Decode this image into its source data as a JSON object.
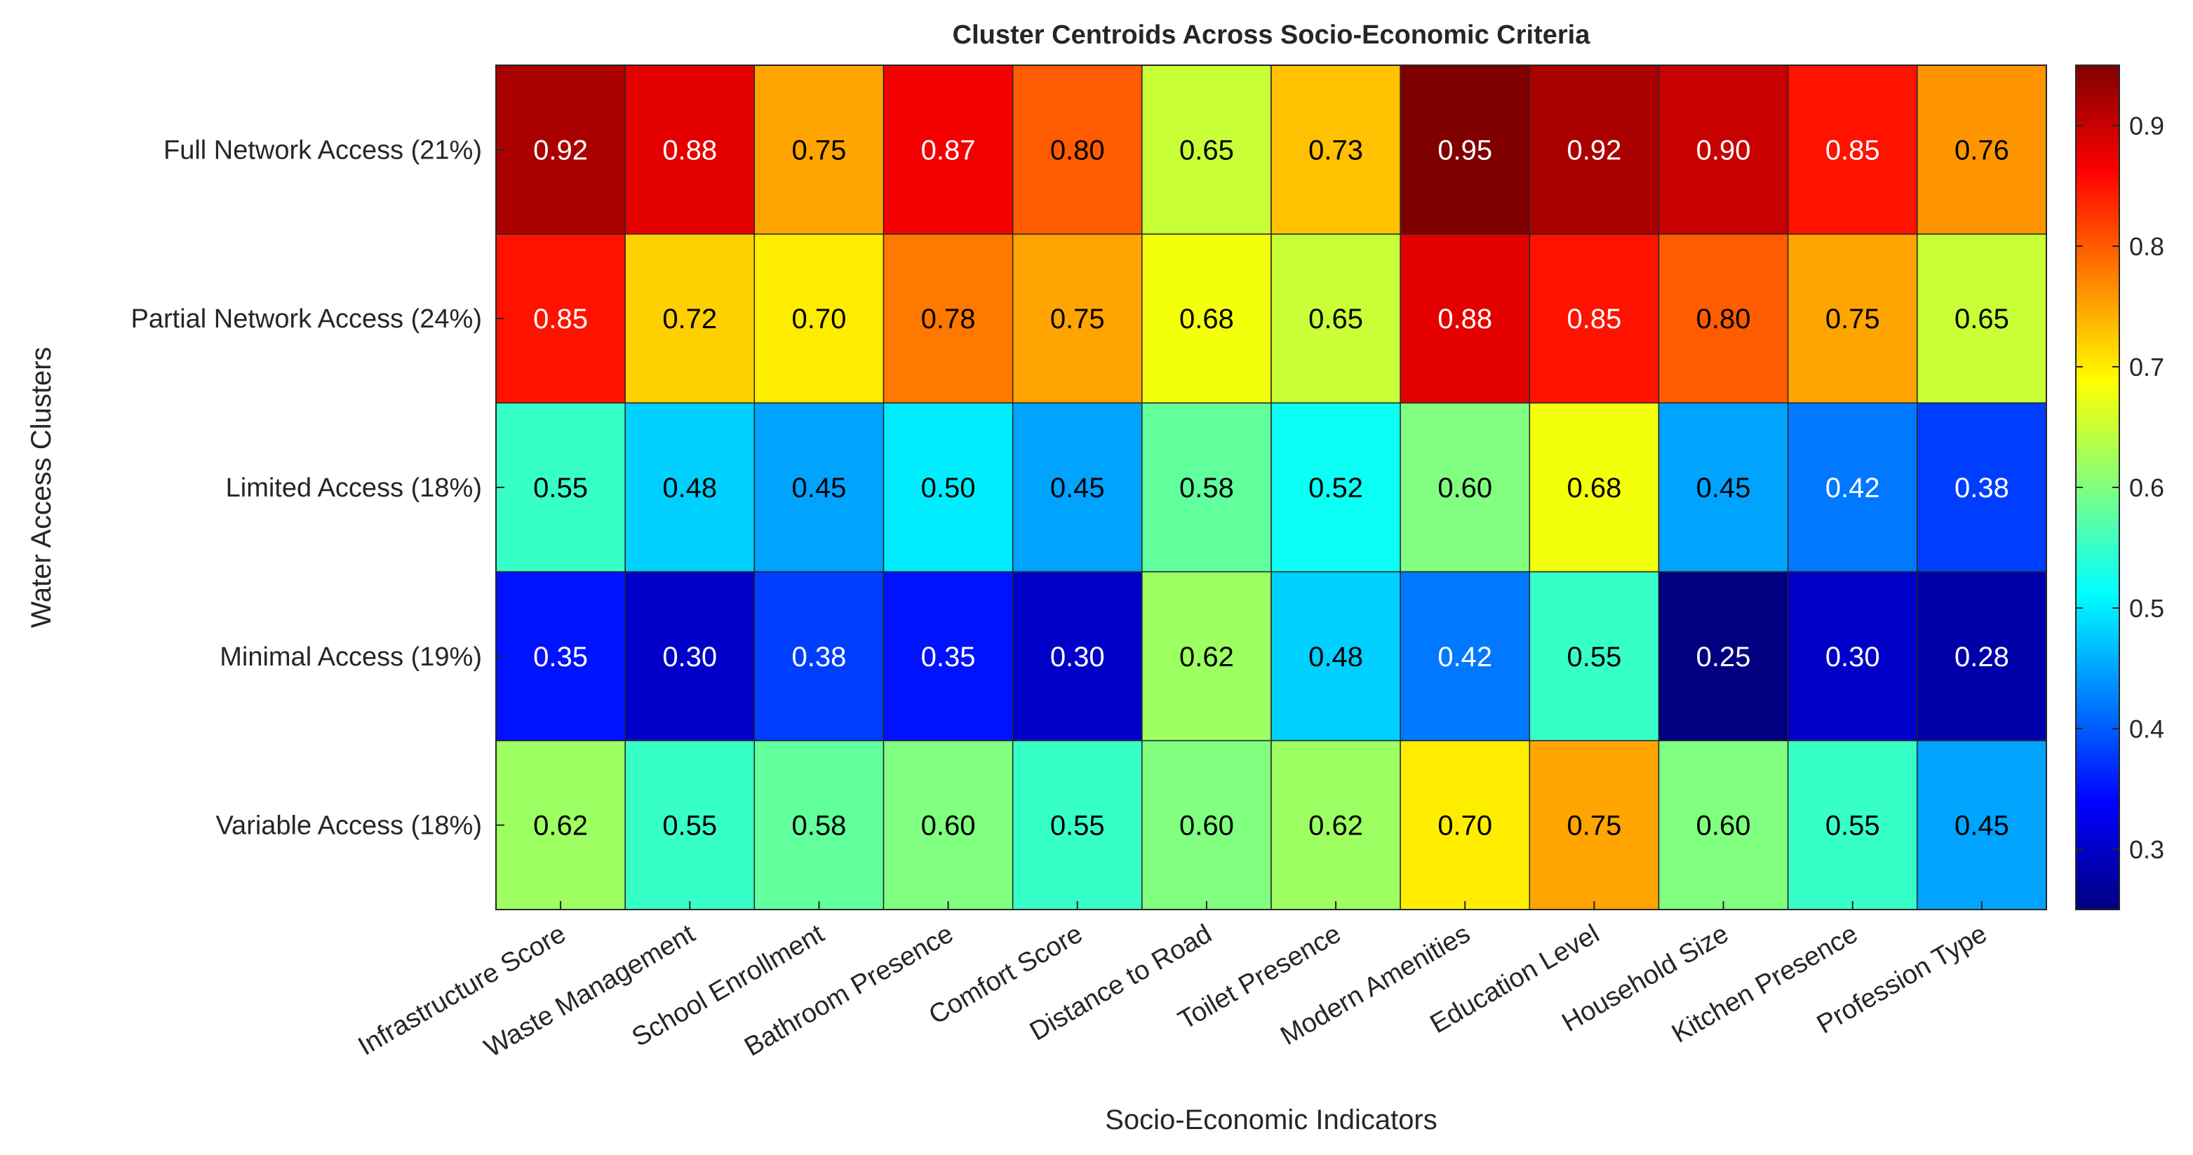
{
  "chart_data": {
    "type": "heatmap",
    "title": "Cluster Centroids Across Socio-Economic Criteria",
    "xlabel": "Socio-Economic Indicators",
    "ylabel": "Water Access Clusters",
    "x_categories": [
      "Infrastructure Score",
      "Waste Management",
      "School Enrollment",
      "Bathroom Presence",
      "Comfort Score",
      "Distance to Road",
      "Toilet Presence",
      "Modern Amenities",
      "Education Level",
      "Household Size",
      "Kitchen Presence",
      "Profession Type"
    ],
    "y_categories": [
      "Full Network Access (21%)",
      "Partial Network Access (24%)",
      "Limited Access (18%)",
      "Minimal Access (19%)",
      "Variable Access (18%)"
    ],
    "values": [
      [
        0.92,
        0.88,
        0.75,
        0.87,
        0.8,
        0.65,
        0.73,
        0.95,
        0.92,
        0.9,
        0.85,
        0.76
      ],
      [
        0.85,
        0.72,
        0.7,
        0.78,
        0.75,
        0.68,
        0.65,
        0.88,
        0.85,
        0.8,
        0.75,
        0.65
      ],
      [
        0.55,
        0.48,
        0.45,
        0.5,
        0.45,
        0.58,
        0.52,
        0.6,
        0.68,
        0.45,
        0.42,
        0.38
      ],
      [
        0.35,
        0.3,
        0.38,
        0.35,
        0.3,
        0.62,
        0.48,
        0.42,
        0.55,
        0.25,
        0.3,
        0.28
      ],
      [
        0.62,
        0.55,
        0.58,
        0.6,
        0.55,
        0.6,
        0.62,
        0.7,
        0.75,
        0.6,
        0.55,
        0.45
      ]
    ],
    "value_format": "0.00",
    "colormap": "jet",
    "color_limits": [
      0.25,
      0.95
    ],
    "colorbar_ticks": [
      0.3,
      0.4,
      0.5,
      0.6,
      0.7,
      0.8,
      0.9
    ],
    "colorbar_tick_labels": [
      "0.3",
      "0.4",
      "0.5",
      "0.6",
      "0.7",
      "0.8",
      "0.9"
    ],
    "colorbar": "right",
    "grid": false
  }
}
